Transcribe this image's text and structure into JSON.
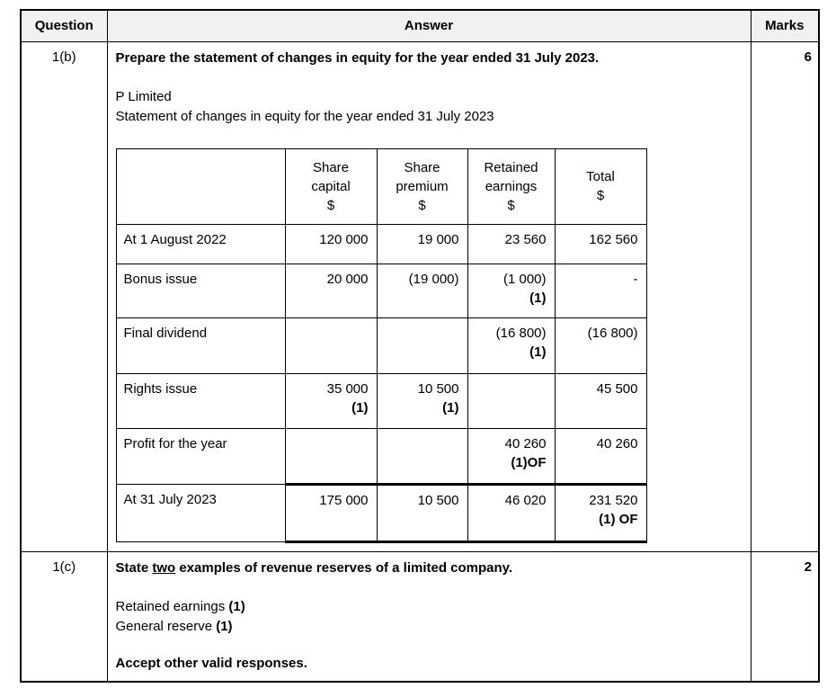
{
  "header": {
    "question": "Question",
    "answer": "Answer",
    "marks": "Marks"
  },
  "sections": [
    {
      "question": "1(b)",
      "marks": "6",
      "prompt": "Prepare the statement of changes in equity for the year ended 31 July 2023.",
      "company": "P Limited",
      "statement_title": "Statement of changes in equity for the year ended 31 July 2023",
      "table": {
        "columns": [
          {
            "name": "",
            "unit": ""
          },
          {
            "name": "Share\ncapital",
            "unit": "$"
          },
          {
            "name": "Share\npremium",
            "unit": "$"
          },
          {
            "name": "Retained\nearnings",
            "unit": "$"
          },
          {
            "name": "Total",
            "unit": "$"
          }
        ],
        "rows": [
          {
            "label": "At 1 August 2022",
            "cells": [
              {
                "v": "120 000"
              },
              {
                "v": "19 000"
              },
              {
                "v": "23 560"
              },
              {
                "v": "162 560"
              }
            ]
          },
          {
            "label": "Bonus issue",
            "cells": [
              {
                "v": "20 000"
              },
              {
                "v": "(19 000)"
              },
              {
                "v": "(1 000)",
                "m": "(1)"
              },
              {
                "v": "-"
              }
            ]
          },
          {
            "label": "Final dividend",
            "cells": [
              {},
              {},
              {
                "v": "(16 800)",
                "m": "(1)"
              },
              {
                "v": "(16 800)"
              }
            ]
          },
          {
            "label": "Rights issue",
            "cells": [
              {
                "v": "35 000",
                "m": "(1)"
              },
              {
                "v": "10 500",
                "m": "(1)"
              },
              {},
              {
                "v": "45 500"
              }
            ]
          },
          {
            "label": "Profit for the year",
            "cells": [
              {},
              {},
              {
                "v": "40 260",
                "m": "(1)OF"
              },
              {
                "v": "40 260"
              }
            ]
          },
          {
            "label": "At 31 July 2023",
            "cells": [
              {
                "v": "175 000"
              },
              {
                "v": "10 500"
              },
              {
                "v": "46 020"
              },
              {
                "v": "231 520",
                "m": "(1) OF"
              }
            ]
          }
        ]
      }
    },
    {
      "question": "1(c)",
      "marks": "2",
      "prompt_before": "State ",
      "prompt_underlined": "two",
      "prompt_after": " examples of revenue reserves of a limited company.",
      "answers": [
        {
          "text": "Retained earnings ",
          "mark": "(1)"
        },
        {
          "text": "General reserve ",
          "mark": "(1)"
        }
      ],
      "note": "Accept other valid responses."
    }
  ]
}
